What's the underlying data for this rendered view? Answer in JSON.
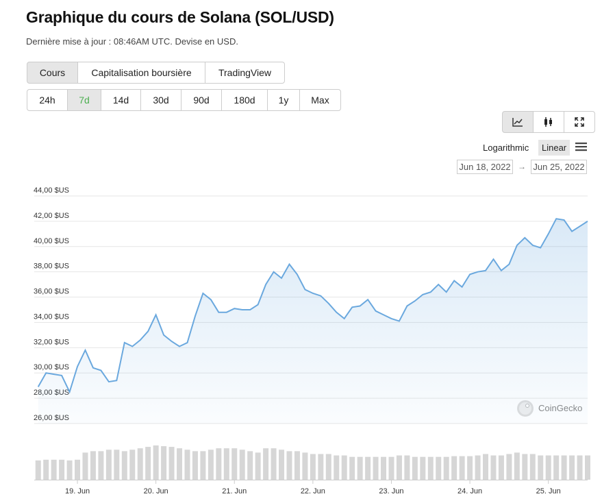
{
  "header": {
    "title": "Graphique du cours de Solana (SOL/USD)",
    "subtitle": "Dernière mise à jour : 08:46AM UTC. Devise en USD."
  },
  "view_tabs": [
    "Cours",
    "Capitalisation boursière",
    "TradingView"
  ],
  "range_tabs": [
    "24h",
    "7d",
    "14d",
    "30d",
    "90d",
    "180d",
    "1y",
    "Max"
  ],
  "scale_options": [
    "Logarithmic",
    "Linear"
  ],
  "date_range": {
    "from": "Jun 18, 2022",
    "to": "Jun 25, 2022"
  },
  "watermark": "CoinGecko",
  "chart_data": {
    "type": "line",
    "x": [
      18.5,
      18.6,
      18.7,
      18.8,
      18.9,
      19.0,
      19.1,
      19.2,
      19.3,
      19.4,
      19.5,
      19.6,
      19.7,
      19.8,
      19.9,
      20.0,
      20.1,
      20.2,
      20.3,
      20.4,
      20.5,
      20.6,
      20.7,
      20.8,
      20.9,
      21.0,
      21.1,
      21.2,
      21.3,
      21.4,
      21.5,
      21.6,
      21.7,
      21.8,
      21.9,
      22.0,
      22.1,
      22.2,
      22.3,
      22.4,
      22.5,
      22.6,
      22.7,
      22.8,
      22.9,
      23.0,
      23.1,
      23.2,
      23.3,
      23.4,
      23.5,
      23.6,
      23.7,
      23.8,
      23.9,
      24.0,
      24.1,
      24.2,
      24.3,
      24.4,
      24.5,
      24.6,
      24.7,
      24.8,
      24.9,
      25.0,
      25.1,
      25.2,
      25.3,
      25.4,
      25.5
    ],
    "series": [
      {
        "color": "#6aa8de",
        "values": [
          28.9,
          30.0,
          29.9,
          29.8,
          28.5,
          30.5,
          31.8,
          30.4,
          30.2,
          29.3,
          29.4,
          32.4,
          32.1,
          32.6,
          33.3,
          34.6,
          33.0,
          32.5,
          32.1,
          32.4,
          34.5,
          36.3,
          35.8,
          34.8,
          34.8,
          35.1,
          35.0,
          35.0,
          35.4,
          37.0,
          38.0,
          37.5,
          38.6,
          37.8,
          36.6,
          36.3,
          36.1,
          35.5,
          34.8,
          34.3,
          35.2,
          35.3,
          35.8,
          34.9,
          34.6,
          34.3,
          34.1,
          35.3,
          35.7,
          36.2,
          36.4,
          37.0,
          36.4,
          37.3,
          36.8,
          37.8,
          38.0,
          38.1,
          39.0,
          38.1,
          38.6,
          40.1,
          40.7,
          40.1,
          39.9,
          41.0,
          42.2,
          42.1,
          41.2,
          41.6,
          42.0
        ]
      }
    ],
    "volumes": [
      27,
      28,
      28,
      28,
      27,
      28,
      38,
      40,
      40,
      42,
      42,
      40,
      42,
      44,
      46,
      48,
      47,
      46,
      44,
      42,
      40,
      40,
      42,
      44,
      44,
      44,
      42,
      40,
      38,
      44,
      44,
      42,
      40,
      40,
      38,
      36,
      36,
      36,
      34,
      34,
      32,
      32,
      32,
      32,
      32,
      32,
      34,
      34,
      32,
      32,
      32,
      32,
      32,
      33,
      33,
      33,
      34,
      36,
      34,
      34,
      36,
      38,
      36,
      36,
      34,
      34,
      34,
      34,
      34,
      34,
      34
    ],
    "volume_color": "#d6d6d6",
    "xlim": [
      18.45,
      25.5
    ],
    "xticks": [
      {
        "value": 19,
        "label": "19. Jun"
      },
      {
        "value": 20,
        "label": "20. Jun"
      },
      {
        "value": 21,
        "label": "21. Jun"
      },
      {
        "value": 22,
        "label": "22. Jun"
      },
      {
        "value": 23,
        "label": "23. Jun"
      },
      {
        "value": 24,
        "label": "24. Jun"
      },
      {
        "value": 25,
        "label": "25. Jun"
      }
    ],
    "ylim": [
      26,
      44
    ],
    "yticks": [
      {
        "value": 26,
        "label": "26,00 $US"
      },
      {
        "value": 28,
        "label": "28,00 $US"
      },
      {
        "value": 30,
        "label": "30,00 $US"
      },
      {
        "value": 32,
        "label": "32,00 $US"
      },
      {
        "value": 34,
        "label": "34,00 $US"
      },
      {
        "value": 36,
        "label": "36,00 $US"
      },
      {
        "value": 38,
        "label": "38,00 $US"
      },
      {
        "value": 40,
        "label": "40,00 $US"
      },
      {
        "value": 42,
        "label": "42,00 $US"
      },
      {
        "value": 44,
        "label": "44,00 $US"
      }
    ],
    "grid": true
  }
}
